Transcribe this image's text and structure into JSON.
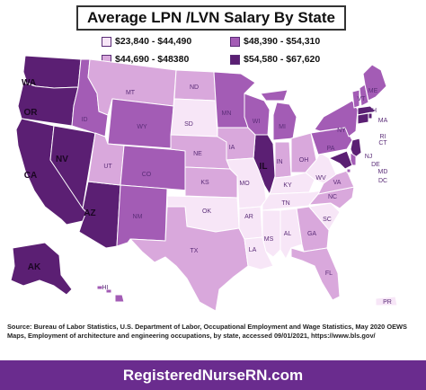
{
  "title": "Average LPN /LVN Salary By State",
  "legend": [
    {
      "label": "$23,840 - $44,490",
      "color": "#f7e6f7"
    },
    {
      "label": "$44,690 - $48380",
      "color": "#d9a8dc"
    },
    {
      "label": "$48,390 - $54,310",
      "color": "#a35cb5"
    },
    {
      "label": "$54,580 - $67,620",
      "color": "#5b1f73"
    }
  ],
  "states": {
    "WA": {
      "label": "WA",
      "tier": 3
    },
    "OR": {
      "label": "OR",
      "tier": 3
    },
    "CA": {
      "label": "CA",
      "tier": 3
    },
    "NV": {
      "label": "NV",
      "tier": 3
    },
    "AZ": {
      "label": "AZ",
      "tier": 3
    },
    "AK": {
      "label": "AK",
      "tier": 3
    },
    "IL": {
      "label": "IL",
      "tier": 3
    },
    "ID": {
      "label": "ID",
      "tier": 2
    },
    "MT": {
      "label": "MT",
      "tier": 1
    },
    "WY": {
      "label": "WY",
      "tier": 2
    },
    "UT": {
      "label": "UT",
      "tier": 1
    },
    "CO": {
      "label": "CO",
      "tier": 2
    },
    "NM": {
      "label": "NM",
      "tier": 2
    },
    "ND": {
      "label": "ND",
      "tier": 1
    },
    "SD": {
      "label": "SD",
      "tier": 0
    },
    "NE": {
      "label": "NE",
      "tier": 1
    },
    "KS": {
      "label": "KS",
      "tier": 1
    },
    "OK": {
      "label": "OK",
      "tier": 0
    },
    "TX": {
      "label": "TX",
      "tier": 1
    },
    "MN": {
      "label": "MN",
      "tier": 2
    },
    "IA": {
      "label": "IA",
      "tier": 1
    },
    "MO": {
      "label": "MO",
      "tier": 0
    },
    "AR": {
      "label": "AR",
      "tier": 0
    },
    "LA": {
      "label": "LA",
      "tier": 0
    },
    "WI": {
      "label": "WI",
      "tier": 2
    },
    "MI": {
      "label": "MI",
      "tier": 2
    },
    "IN": {
      "label": "IN",
      "tier": 1
    },
    "OH": {
      "label": "OH",
      "tier": 1
    },
    "KY": {
      "label": "KY",
      "tier": 0
    },
    "TN": {
      "label": "TN",
      "tier": 0
    },
    "MS": {
      "label": "MS",
      "tier": 0
    },
    "AL": {
      "label": "AL",
      "tier": 0
    },
    "GA": {
      "label": "GA",
      "tier": 1
    },
    "FL": {
      "label": "FL",
      "tier": 1
    },
    "SC": {
      "label": "SC",
      "tier": 0
    },
    "NC": {
      "label": "NC",
      "tier": 1
    },
    "VA": {
      "label": "VA",
      "tier": 1
    },
    "WV": {
      "label": "WV",
      "tier": 0
    },
    "PA": {
      "label": "PA",
      "tier": 2
    },
    "NY": {
      "label": "NY",
      "tier": 2
    },
    "VT": {
      "label": "VT",
      "tier": 2
    },
    "NH": {
      "label": "NH",
      "tier": 2
    },
    "ME": {
      "label": "ME",
      "tier": 2
    },
    "MA": {
      "label": "MA",
      "tier": 3
    },
    "RI": {
      "label": "RI",
      "tier": 3
    },
    "CT": {
      "label": "CT",
      "tier": 3
    },
    "NJ": {
      "label": "NJ",
      "tier": 3
    },
    "DE": {
      "label": "DE",
      "tier": 2
    },
    "MD": {
      "label": "MD",
      "tier": 3
    },
    "DC": {
      "label": "DC",
      "tier": 2
    },
    "HI": {
      "label": "HI",
      "tier": 2
    },
    "PR": {
      "label": "PR",
      "tier": 0
    }
  },
  "source_text": "Source: Bureau of Labor Statistics, U.S. Department of Labor, Occupational Employment and Wage Statistics, May 2020 OEWS Maps, Employment of architecture and engineering occupations, by state, accessed 09/01/2021, https://www.bls.gov/",
  "footer": "RegisteredNurseRN.com"
}
